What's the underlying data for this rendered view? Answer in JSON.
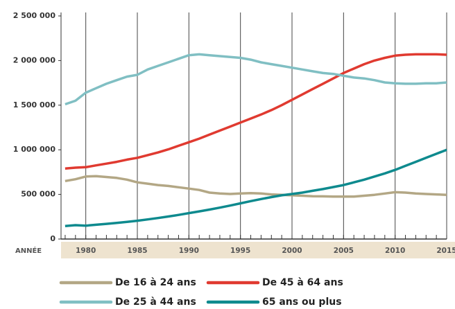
{
  "chart_data": {
    "type": "line",
    "xlabel": "ANNÉE",
    "x": [
      1978,
      1979,
      1980,
      1981,
      1982,
      1983,
      1984,
      1985,
      1986,
      1987,
      1988,
      1989,
      1990,
      1991,
      1992,
      1993,
      1994,
      1995,
      1996,
      1997,
      1998,
      1999,
      2000,
      2001,
      2002,
      2003,
      2004,
      2005,
      2006,
      2007,
      2008,
      2009,
      2010,
      2011,
      2012,
      2013,
      2014,
      2015
    ],
    "xlim": [
      1977.6,
      2015
    ],
    "xticks": [
      1980,
      1985,
      1990,
      1995,
      2000,
      2005,
      2010,
      2015
    ],
    "ylim": [
      0,
      2500000
    ],
    "yticks": [
      0,
      {
        "value": 500000,
        "label": "500 000"
      },
      {
        "value": 1000000,
        "label": "1 000 000"
      },
      {
        "value": 1500000,
        "label": "1 500 000"
      },
      {
        "value": 2000000,
        "label": "2 000 000"
      },
      {
        "value": 2500000,
        "label": "2 500 000"
      }
    ],
    "grid": true,
    "legend": "bottom",
    "series": [
      {
        "name": "De 16 à 24 ans",
        "color": "#b3a785",
        "values": [
          650000,
          670000,
          700000,
          705000,
          695000,
          685000,
          665000,
          635000,
          620000,
          605000,
          595000,
          580000,
          565000,
          550000,
          520000,
          510000,
          505000,
          510000,
          515000,
          510000,
          500000,
          495000,
          490000,
          485000,
          480000,
          478000,
          475000,
          475000,
          475000,
          485000,
          495000,
          510000,
          525000,
          520000,
          510000,
          505000,
          500000,
          495000
        ]
      },
      {
        "name": "De 45 à 64 ans",
        "color": "#e03a30",
        "values": [
          790000,
          800000,
          805000,
          825000,
          845000,
          865000,
          890000,
          910000,
          940000,
          970000,
          1005000,
          1045000,
          1085000,
          1125000,
          1170000,
          1215000,
          1260000,
          1305000,
          1350000,
          1395000,
          1445000,
          1500000,
          1560000,
          1620000,
          1680000,
          1740000,
          1800000,
          1860000,
          1910000,
          1960000,
          2000000,
          2030000,
          2055000,
          2065000,
          2070000,
          2070000,
          2070000,
          2065000
        ]
      },
      {
        "name": "De 25 à 44 ans",
        "color": "#80bfc3",
        "values": [
          1510000,
          1550000,
          1640000,
          1690000,
          1740000,
          1780000,
          1820000,
          1840000,
          1900000,
          1940000,
          1980000,
          2020000,
          2060000,
          2070000,
          2060000,
          2050000,
          2040000,
          2030000,
          2010000,
          1980000,
          1960000,
          1940000,
          1920000,
          1900000,
          1880000,
          1860000,
          1850000,
          1830000,
          1810000,
          1800000,
          1780000,
          1755000,
          1745000,
          1740000,
          1740000,
          1745000,
          1745000,
          1755000
        ]
      },
      {
        "name": "65 ans ou plus",
        "color": "#0e8a8e",
        "values": [
          145000,
          155000,
          150000,
          160000,
          170000,
          180000,
          192000,
          205000,
          220000,
          235000,
          252000,
          270000,
          290000,
          310000,
          330000,
          352000,
          375000,
          400000,
          425000,
          448000,
          470000,
          490000,
          505000,
          520000,
          540000,
          560000,
          582000,
          605000,
          635000,
          665000,
          700000,
          735000,
          775000,
          820000,
          865000,
          910000,
          955000,
          1000000
        ]
      }
    ]
  }
}
